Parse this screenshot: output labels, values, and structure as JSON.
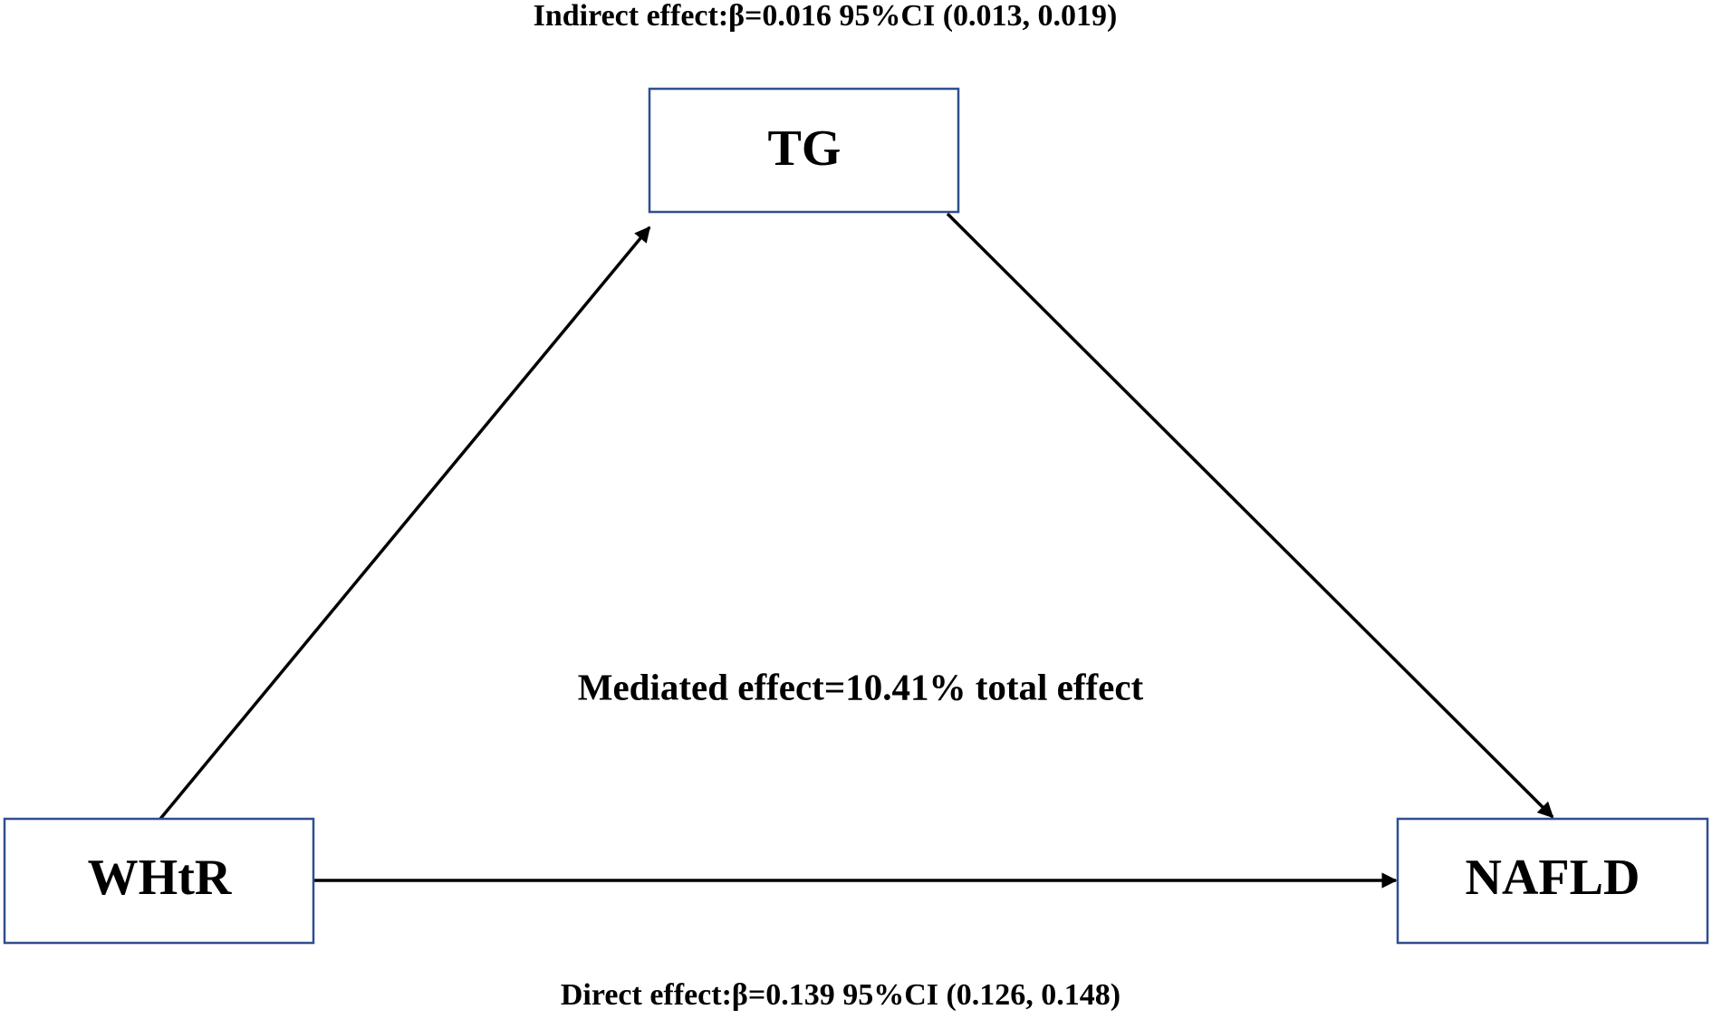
{
  "nodes": [
    {
      "label": "TG"
    },
    {
      "label": "WHtR"
    },
    {
      "label": "NAFLD"
    }
  ],
  "annotations": {
    "indirect": "Indirect effect:β=0.016 95%CI (0.013, 0.019)",
    "mediated": "Mediated effect=10.41% total effect",
    "direct": "Direct effect:β=0.139 95%CI (0.126, 0.148)"
  }
}
